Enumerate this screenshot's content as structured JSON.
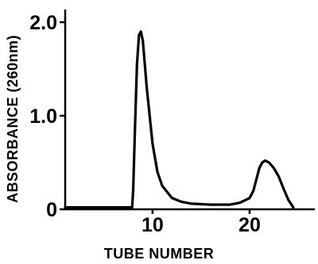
{
  "chart_data": {
    "type": "line",
    "title": "",
    "xlabel": "TUBE NUMBER",
    "ylabel": "ABSORBANCE (260nm)",
    "xlim": [
      1,
      25
    ],
    "ylim": [
      0,
      2.0
    ],
    "grid": false,
    "legend": "none",
    "line_color": "#000000",
    "x_ticks": [
      {
        "value": 10,
        "label": "10"
      },
      {
        "value": 20,
        "label": "20"
      }
    ],
    "y_ticks": [
      {
        "value": 0,
        "label": "0"
      },
      {
        "value": 1.0,
        "label": "1.0"
      },
      {
        "value": 2.0,
        "label": "2.0"
      }
    ],
    "series": [
      {
        "x": [
          1,
          4,
          7.9,
          8.0,
          8.2,
          8.4,
          8.6,
          8.8,
          9.0,
          9.4,
          10.0,
          10.5,
          11.0,
          12.0,
          13.0,
          14.0,
          16.0,
          18.0,
          19.0,
          20.0,
          20.4,
          20.7,
          21.0,
          21.3,
          21.6,
          22.0,
          22.5,
          23.0,
          23.5,
          24.0,
          24.5
        ],
        "y": [
          0.02,
          0.02,
          0.02,
          0.2,
          0.9,
          1.55,
          1.86,
          1.9,
          1.8,
          1.3,
          0.7,
          0.4,
          0.25,
          0.12,
          0.08,
          0.06,
          0.05,
          0.05,
          0.07,
          0.12,
          0.2,
          0.32,
          0.44,
          0.5,
          0.52,
          0.5,
          0.44,
          0.35,
          0.22,
          0.1,
          0.02
        ]
      }
    ]
  }
}
